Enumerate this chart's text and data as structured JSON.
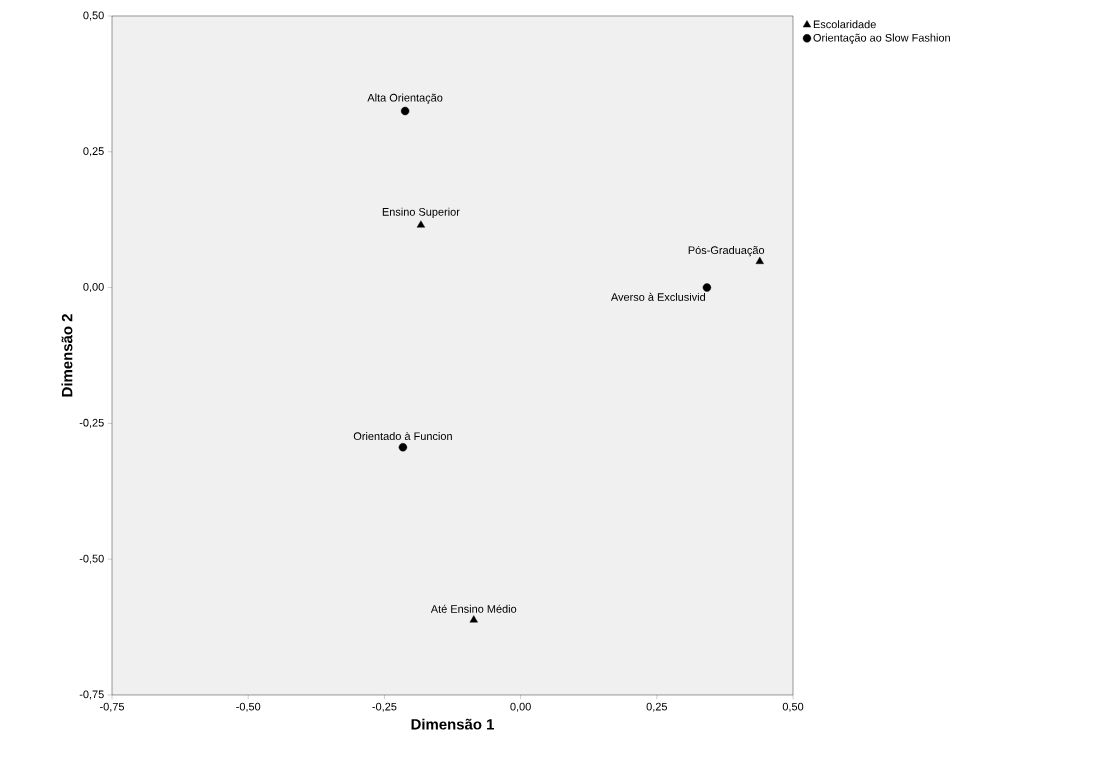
{
  "chart_data": {
    "type": "scatter",
    "xlabel": "Dimensão 1",
    "ylabel": "Dimensão 2",
    "series": [
      {
        "name": "Escolaridade",
        "color": "#000000",
        "marker": "triangle",
        "x": [
          -0.183,
          0.439,
          -0.086
        ],
        "values": [
          0.115,
          0.048,
          -0.612
        ]
      },
      {
        "name": "Orientação ao Slow Fashion",
        "color": "#000000",
        "marker": "circle",
        "x": [
          -0.212,
          0.342,
          -0.216
        ],
        "values": [
          0.325,
          0.0,
          -0.294
        ]
      }
    ],
    "annotations": [
      {
        "text": "Ensino Superior",
        "x": -0.183,
        "y": 0.115
      },
      {
        "text": "Pós-Graduação",
        "x": 0.439,
        "y": 0.048
      },
      {
        "text": "Até Ensino Médio",
        "x": -0.086,
        "y": -0.612
      },
      {
        "text": "Alta Orientação",
        "x": -0.212,
        "y": 0.325
      },
      {
        "text": "Averso à Exclusivid",
        "x": 0.342,
        "y": 0.0
      },
      {
        "text": "Orientado à Funcion",
        "x": -0.216,
        "y": -0.294
      }
    ],
    "xlim": [
      -0.75,
      0.5
    ],
    "ylim": [
      -0.75,
      0.5
    ],
    "xticks": [
      {
        "value": -0.75,
        "label": "-0,75"
      },
      {
        "value": -0.5,
        "label": "-0,50"
      },
      {
        "value": -0.25,
        "label": "-0,25"
      },
      {
        "value": 0,
        "label": "0,00"
      },
      {
        "value": 0.25,
        "label": "0,25"
      },
      {
        "value": 0.5,
        "label": "0,50"
      }
    ],
    "yticks": [
      {
        "value": -0.75,
        "label": "-0,75"
      },
      {
        "value": -0.5,
        "label": "-0,50"
      },
      {
        "value": -0.25,
        "label": "-0,25"
      },
      {
        "value": 0,
        "label": "0,00"
      },
      {
        "value": 0.25,
        "label": "0,25"
      },
      {
        "value": 0.5,
        "label": "0,50"
      }
    ],
    "legend": "top right",
    "grid": false
  }
}
